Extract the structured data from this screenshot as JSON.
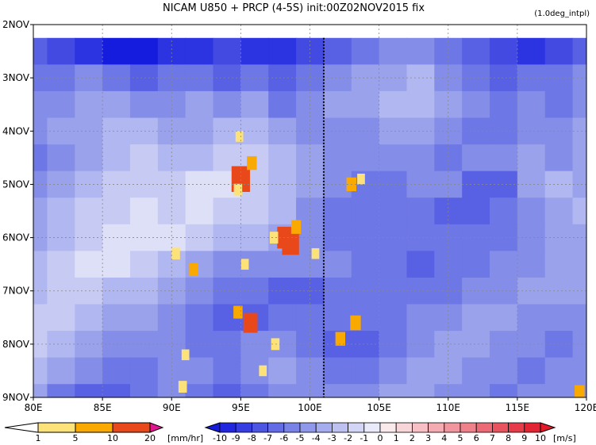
{
  "chart_data": {
    "type": "heatmap",
    "title": "NICAM   U850 + PRCP (4-5S) init:00Z02NOV2015  fix",
    "subtitle": "(1.0deg_intpl)",
    "x_ticks": [
      {
        "value": 80,
        "label": "80E"
      },
      {
        "value": 85,
        "label": "85E"
      },
      {
        "value": 90,
        "label": "90E"
      },
      {
        "value": 95,
        "label": "95E"
      },
      {
        "value": 100,
        "label": "100E"
      },
      {
        "value": 105,
        "label": "105E"
      },
      {
        "value": 110,
        "label": "110E"
      },
      {
        "value": 115,
        "label": "115E"
      },
      {
        "value": 120,
        "label": "120E"
      }
    ],
    "y_ticks": [
      {
        "value": 2,
        "label": "2NOV"
      },
      {
        "value": 3,
        "label": "3NOV"
      },
      {
        "value": 4,
        "label": "4NOV"
      },
      {
        "value": 5,
        "label": "5NOV"
      },
      {
        "value": 6,
        "label": "6NOV"
      },
      {
        "value": 7,
        "label": "7NOV"
      },
      {
        "value": 8,
        "label": "8NOV"
      },
      {
        "value": 9,
        "label": "9NOV"
      }
    ],
    "xlim": [
      80,
      120
    ],
    "ylim": [
      2,
      9
    ],
    "y_direction": "downward (time increasing)",
    "grid": true,
    "reference_line": {
      "x": 101,
      "style": "dashed"
    },
    "data_start_y": 2.25,
    "u850_field": {
      "name": "U850",
      "units": "[m/s]",
      "x_step": 2,
      "x_start": 80,
      "y_step": 0.5,
      "y_start": 2.25,
      "values": [
        [
          -7,
          -8,
          -9,
          -10,
          -10,
          -9,
          -9,
          -8,
          -9,
          -9,
          -8,
          -7,
          -6,
          -5,
          -5,
          -6,
          -7,
          -8,
          -9,
          -8,
          -7
        ],
        [
          -6,
          -6,
          -5,
          -6,
          -7,
          -6,
          -6,
          -7,
          -6,
          -7,
          -6,
          -5,
          -4,
          -4,
          -3,
          -5,
          -6,
          -7,
          -6,
          -6,
          -5
        ],
        [
          -5,
          -5,
          -4,
          -4,
          -5,
          -5,
          -4,
          -5,
          -4,
          -6,
          -5,
          -4,
          -4,
          -3,
          -3,
          -4,
          -5,
          -6,
          -5,
          -6,
          -5
        ],
        [
          -5,
          -4,
          -4,
          -3,
          -3,
          -4,
          -4,
          -3,
          -3,
          -4,
          -5,
          -5,
          -5,
          -4,
          -4,
          -5,
          -6,
          -6,
          -5,
          -5,
          -4
        ],
        [
          -6,
          -5,
          -4,
          -3,
          -2,
          -3,
          -3,
          -2,
          -2,
          -3,
          -4,
          -5,
          -5,
          -5,
          -5,
          -6,
          -5,
          -5,
          -4,
          -5,
          -4
        ],
        [
          -5,
          -4,
          -3,
          -2,
          -2,
          -2,
          -1,
          -1,
          -2,
          -3,
          -4,
          -5,
          -6,
          -6,
          -5,
          -5,
          -7,
          -7,
          -4,
          -3,
          -4
        ],
        [
          -4,
          -3,
          -2,
          -2,
          -1,
          -2,
          -1,
          -2,
          -2,
          -3,
          -5,
          -6,
          -6,
          -6,
          -6,
          -7,
          -7,
          -6,
          -5,
          -4,
          -3
        ],
        [
          -4,
          -3,
          -2,
          -1,
          -1,
          -1,
          -2,
          -3,
          -3,
          -4,
          -5,
          -6,
          -6,
          -6,
          -6,
          -6,
          -6,
          -6,
          -5,
          -4,
          -4
        ],
        [
          -3,
          -2,
          -1,
          -1,
          -2,
          -3,
          -4,
          -5,
          -5,
          -5,
          -5,
          -5,
          -6,
          -6,
          -7,
          -6,
          -6,
          -5,
          -5,
          -4,
          -4
        ],
        [
          -3,
          -2,
          -2,
          -3,
          -3,
          -4,
          -5,
          -6,
          -6,
          -7,
          -7,
          -6,
          -6,
          -6,
          -6,
          -6,
          -5,
          -5,
          -4,
          -4,
          -4
        ],
        [
          -2,
          -2,
          -3,
          -4,
          -4,
          -5,
          -6,
          -7,
          -7,
          -6,
          -6,
          -6,
          -6,
          -6,
          -5,
          -5,
          -4,
          -4,
          -5,
          -5,
          -5
        ],
        [
          -2,
          -3,
          -4,
          -5,
          -5,
          -5,
          -6,
          -6,
          -5,
          -5,
          -6,
          -7,
          -7,
          -6,
          -5,
          -4,
          -4,
          -5,
          -5,
          -6,
          -5
        ],
        [
          -3,
          -4,
          -5,
          -6,
          -6,
          -5,
          -5,
          -6,
          -5,
          -4,
          -5,
          -6,
          -6,
          -5,
          -4,
          -4,
          -5,
          -5,
          -6,
          -5,
          -5
        ],
        [
          -4,
          -6,
          -7,
          -7,
          -6,
          -5,
          -6,
          -7,
          -6,
          -5,
          -5,
          -5,
          -5,
          -4,
          -4,
          -5,
          -5,
          -6,
          -5,
          -5,
          -5
        ]
      ]
    },
    "precip_patches": {
      "name": "PRCP",
      "units": "[mm/hr]",
      "points": [
        {
          "x": 95.0,
          "y": 4.9,
          "v": 18
        },
        {
          "x": 95.8,
          "y": 4.6,
          "v": 6
        },
        {
          "x": 94.8,
          "y": 5.1,
          "v": 4
        },
        {
          "x": 98.2,
          "y": 6.0,
          "v": 14
        },
        {
          "x": 98.6,
          "y": 6.1,
          "v": 16
        },
        {
          "x": 99.0,
          "y": 5.8,
          "v": 6
        },
        {
          "x": 97.4,
          "y": 6.0,
          "v": 4
        },
        {
          "x": 95.7,
          "y": 7.6,
          "v": 12
        },
        {
          "x": 94.8,
          "y": 7.4,
          "v": 5
        },
        {
          "x": 94.9,
          "y": 4.1,
          "v": 3
        },
        {
          "x": 95.3,
          "y": 6.5,
          "v": 3
        },
        {
          "x": 91.6,
          "y": 6.6,
          "v": 5
        },
        {
          "x": 90.3,
          "y": 6.3,
          "v": 4
        },
        {
          "x": 90.8,
          "y": 8.8,
          "v": 4
        },
        {
          "x": 91.0,
          "y": 8.2,
          "v": 3
        },
        {
          "x": 97.5,
          "y": 8.0,
          "v": 4
        },
        {
          "x": 102.2,
          "y": 7.9,
          "v": 6
        },
        {
          "x": 103.3,
          "y": 7.6,
          "v": 7
        },
        {
          "x": 103.0,
          "y": 5.0,
          "v": 6
        },
        {
          "x": 103.7,
          "y": 4.9,
          "v": 3
        },
        {
          "x": 100.4,
          "y": 6.3,
          "v": 3
        },
        {
          "x": 96.6,
          "y": 8.5,
          "v": 3
        },
        {
          "x": 119.5,
          "y": 8.9,
          "v": 6
        }
      ]
    }
  },
  "colorbars": {
    "precip": {
      "tick_labels": [
        "1",
        "5",
        "10",
        "20"
      ],
      "units": "[mm/hr]",
      "colors": [
        "#ffffff",
        "#fde27a",
        "#f9a900",
        "#e9481b",
        "#e01791"
      ]
    },
    "wind": {
      "tick_labels": [
        "-10",
        "-9",
        "-8",
        "-7",
        "-6",
        "-5",
        "-4",
        "-3",
        "-2",
        "-1",
        "0",
        "1",
        "2",
        "3",
        "4",
        "5",
        "6",
        "7",
        "8",
        "9",
        "10"
      ],
      "units": "[m/s]"
    }
  },
  "colors": {
    "axis": "#000000",
    "grid": "#888888",
    "reference_line": "#000000",
    "background": "#ffffff"
  }
}
